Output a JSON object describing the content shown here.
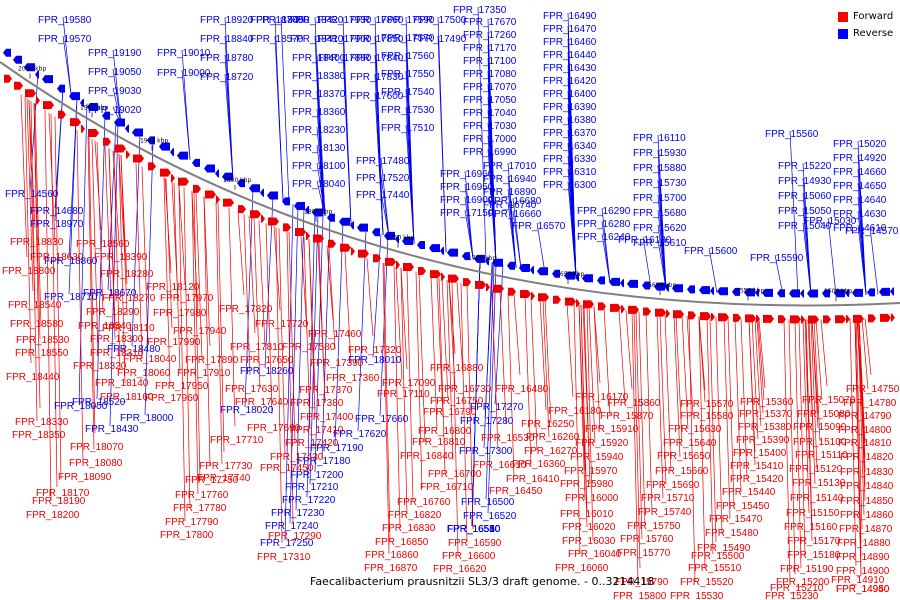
{
  "caption": "Faecalibacterium prausnitzii SL3/3 draft genome. - 0..3214418",
  "legend": [
    {
      "label": "Forward",
      "color": "#ff0000"
    },
    {
      "label": "Reverse",
      "color": "#0000ff"
    }
  ],
  "colors": {
    "forward": "#ee0000",
    "reverse": "#0000ee",
    "backbone": "#808080"
  },
  "scale_labels": [
    "2000 kbp",
    "1950 kbp",
    "1900 kbp",
    "1850 kbp",
    "1800 kbp",
    "1750 kbp",
    "1700 kbp",
    "1650 kbp",
    "1600 kbp",
    "1550 kbp",
    "1500 kbp"
  ],
  "reverse_labels": [
    "FPR_19580",
    "FPR_19570",
    "FPR_19190",
    "FPR_19050",
    "FPR_19030",
    "FPR_19020",
    "FPR_19010",
    "FPR_19000",
    "FPR_18920",
    "FPR_18840",
    "FPR_18780",
    "FPR_18720",
    "FPR_18700",
    "FPR_18570",
    "FPR_18450",
    "FPR_18420",
    "FPR_18410",
    "FPR_18400",
    "FPR_18380",
    "FPR_18370",
    "FPR_18360",
    "FPR_18230",
    "FPR_18130",
    "FPR_18100",
    "FPR_18040",
    "FPR_17930",
    "FPR_17900",
    "FPR_17880",
    "FPR_17860",
    "FPR_17850",
    "FPR_17840",
    "FPR_17830",
    "FPR_17600",
    "FPR_17590",
    "FPR_17570",
    "FPR_17560",
    "FPR_17550",
    "FPR_17540",
    "FPR_17530",
    "FPR_17510",
    "FPR_17500",
    "FPR_17490",
    "FPR_17480",
    "FPR_17520",
    "FPR_17440",
    "FPR_17350",
    "FPR_17670",
    "FPR_17260",
    "FPR_17170",
    "FPR_17100",
    "FPR_17080",
    "FPR_17070",
    "FPR_17050",
    "FPR_17040",
    "FPR_17030",
    "FPR_17000",
    "FPR_16990",
    "FPR_16960",
    "FPR_16950",
    "FPR_16900",
    "FPR_17150",
    "FPR_17010",
    "FPR_16940",
    "FPR_16890",
    "FPR_16740",
    "FPR_16680",
    "FPR_16660",
    "FPR_16570",
    "FPR_16490",
    "FPR_16470",
    "FPR_16460",
    "FPR_16440",
    "FPR_16430",
    "FPR_16420",
    "FPR_16400",
    "FPR_16390",
    "FPR_16380",
    "FPR_16370",
    "FPR_16340",
    "FPR_16330",
    "FPR_16310",
    "FPR_16300",
    "FPR_16290",
    "FPR_16280",
    "FPR_16240",
    "FPR_16130",
    "FPR_16110",
    "FPR_15930",
    "FPR_15880",
    "FPR_15730",
    "FPR_15700",
    "FPR_15680",
    "FPR_15620",
    "FPR_15610",
    "FPR_15600",
    "FPR_15590",
    "FPR_15560",
    "FPR_15220",
    "FPR_14930",
    "FPR_15060",
    "FPR_15050",
    "FPR_15040",
    "FPR_15030",
    "FPR_15020",
    "FPR_14920",
    "FPR_14660",
    "FPR_14650",
    "FPR_14640",
    "FPR_14630",
    "FPR_14610",
    "FPR_14570",
    "FPR_14560",
    "FPR_14680",
    "FPR_18970",
    "FPR_18860",
    "FPR_18710",
    "FPR_18670",
    "FPR_18480",
    "FPR_18520",
    "FPR_18430",
    "FPR_18050",
    "FPR_18000",
    "FPR_18020",
    "FPR_18260",
    "FPR_18010",
    "FPR_17660",
    "FPR_17620",
    "FPR_17190",
    "FPR_17180",
    "FPR_17200",
    "FPR_17210",
    "FPR_17220",
    "FPR_17230",
    "FPR_17240",
    "FPR_17250",
    "FPR_17270",
    "FPR_17280",
    "FPR_17300",
    "FPR_16500",
    "FPR_16520",
    "FPR_16540",
    "FPR_16510",
    "FPR_16550",
    "FPR_16580"
  ],
  "forward_labels": [
    "FPR_18830",
    "FPR_18630",
    "FPR_18800",
    "FPR_18560",
    "FPR_18390",
    "FPR_18280",
    "FPR_18540",
    "FPR_18580",
    "FPR_18530",
    "FPR_18550",
    "FPR_18440",
    "FPR_18330",
    "FPR_18350",
    "FPR_18340",
    "FPR_18300",
    "FPR_18310",
    "FPR_18320",
    "FPR_18290",
    "FPR_18270",
    "FPR_18120",
    "FPR_17970",
    "FPR_17980",
    "FPR_17940",
    "FPR_18110",
    "FPR_17990",
    "FPR_17890",
    "FPR_17910",
    "FPR_17950",
    "FPR_17960",
    "FPR_18060",
    "FPR_18040",
    "FPR_18140",
    "FPR_18160",
    "FPR_18070",
    "FPR_18080",
    "FPR_18090",
    "FPR_18170",
    "FPR_18190",
    "FPR_18200",
    "FPR_17820",
    "FPR_17720",
    "FPR_17810",
    "FPR_17650",
    "FPR_17630",
    "FPR_17640",
    "FPR_17690",
    "FPR_17710",
    "FPR_17730",
    "FPR_17740",
    "FPR_17750",
    "FPR_17760",
    "FPR_17780",
    "FPR_17790",
    "FPR_17800",
    "FPR_17460",
    "FPR_17580",
    "FPR_17390",
    "FPR_17360",
    "FPR_17370",
    "FPR_17380",
    "FPR_17400",
    "FPR_17410",
    "FPR_17420",
    "FPR_17430",
    "FPR_17450",
    "FPR_17320",
    "FPR_17090",
    "FPR_17110",
    "FPR_17290",
    "FPR_17310",
    "FPR_16880",
    "FPR_16730",
    "FPR_16750",
    "FPR_16790",
    "FPR_16800",
    "FPR_16810",
    "FPR_16840",
    "FPR_16700",
    "FPR_16710",
    "FPR_16760",
    "FPR_16820",
    "FPR_16830",
    "FPR_16850",
    "FPR_16860",
    "FPR_16870",
    "FPR_16590",
    "FPR_16600",
    "FPR_16620",
    "FPR_16480",
    "FPR_16530",
    "FPR_16610",
    "FPR_16450",
    "FPR_16410",
    "FPR_16360",
    "FPR_16270",
    "FPR_16260",
    "FPR_16250",
    "FPR_16180",
    "FPR_16170",
    "FPR_15860",
    "FPR_15870",
    "FPR_15910",
    "FPR_15920",
    "FPR_15940",
    "FPR_15970",
    "FPR_15980",
    "FPR_16000",
    "FPR_16010",
    "FPR_16020",
    "FPR_16030",
    "FPR_16040",
    "FPR_16060",
    "FPR_15570",
    "FPR_15580",
    "FPR_15630",
    "FPR_15640",
    "FPR_15650",
    "FPR_15660",
    "FPR_15690",
    "FPR_15710",
    "FPR_15740",
    "FPR_15750",
    "FPR_15760",
    "FPR_15770",
    "FPR_15790",
    "FPR_15800",
    "FPR_15360",
    "FPR_15370",
    "FPR_15380",
    "FPR_15390",
    "FPR_15400",
    "FPR_15410",
    "FPR_15420",
    "FPR_15440",
    "FPR_15450",
    "FPR_15470",
    "FPR_15480",
    "FPR_15490",
    "FPR_15500",
    "FPR_15510",
    "FPR_15520",
    "FPR_15530",
    "FPR_15070",
    "FPR_15080",
    "FPR_15090",
    "FPR_15100",
    "FPR_15110",
    "FPR_15120",
    "FPR_15130",
    "FPR_15140",
    "FPR_15150",
    "FPR_15160",
    "FPR_15170",
    "FPR_15180",
    "FPR_15190",
    "FPR_15200",
    "FPR_15210",
    "FPR_15230",
    "FPR_14750",
    "FPR_14780",
    "FPR_14790",
    "FPR_14800",
    "FPR_14810",
    "FPR_14820",
    "FPR_14830",
    "FPR_14840",
    "FPR_14850",
    "FPR_14860",
    "FPR_14870",
    "FPR_14880",
    "FPR_14890",
    "FPR_14900",
    "FPR_14910",
    "FPR_14940",
    "FPR_14950"
  ]
}
